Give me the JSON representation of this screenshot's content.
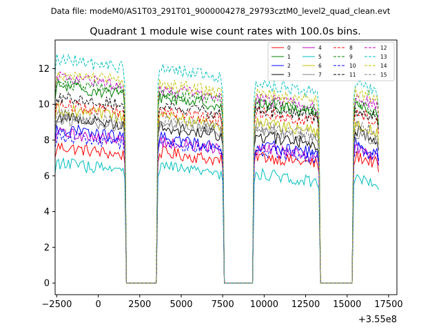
{
  "suptitle": "Data file: modeM0/AS1T03_291T01_9000004278_29793cztM0_level2_quad_clean.evt",
  "chart_data": {
    "type": "line",
    "title": "Quadrant 1 module wise count rates with 100.0s bins.",
    "xlabel": "",
    "ylabel": "",
    "offset_label": "+3.55e8",
    "xlim": [
      -2600,
      18000
    ],
    "ylim": [
      -0.65,
      13.6
    ],
    "x_ticks": [
      -2500,
      0,
      2500,
      5000,
      7500,
      10000,
      12500,
      15000,
      17500
    ],
    "x_tick_labels": [
      "−2500",
      "0",
      "2500",
      "5000",
      "7500",
      "10000",
      "12500",
      "15000",
      "17500"
    ],
    "y_ticks": [
      0,
      2,
      4,
      6,
      8,
      10,
      12
    ],
    "y_tick_labels": [
      "0",
      "2",
      "4",
      "6",
      "8",
      "10",
      "12"
    ],
    "grid": false,
    "legend_position": "top-right",
    "legend_columns": 4,
    "segments": [
      {
        "start": -2600,
        "end": 1600
      },
      {
        "start": 3600,
        "end": 7500
      },
      {
        "start": 9400,
        "end": 13300
      },
      {
        "start": 15400,
        "end": 16900
      }
    ],
    "gap_value": 0,
    "series": [
      {
        "name": "0",
        "color": "#ff0000",
        "dashed": false,
        "levels": [
          7.4,
          7.1,
          6.9,
          6.9
        ]
      },
      {
        "name": "1",
        "color": "#008000",
        "dashed": false,
        "levels": [
          10.8,
          10.2,
          9.8,
          9.8
        ]
      },
      {
        "name": "2",
        "color": "#0000ff",
        "dashed": false,
        "levels": [
          8.4,
          7.9,
          7.5,
          7.6
        ]
      },
      {
        "name": "3",
        "color": "#000000",
        "dashed": false,
        "levels": [
          9.1,
          8.5,
          8.0,
          8.3
        ]
      },
      {
        "name": "4",
        "color": "#bf00bf",
        "dashed": false,
        "levels": [
          8.2,
          7.7,
          7.3,
          7.3
        ]
      },
      {
        "name": "5",
        "color": "#00bfbf",
        "dashed": false,
        "levels": [
          6.5,
          6.3,
          5.9,
          5.8
        ]
      },
      {
        "name": "6",
        "color": "#bfbf00",
        "dashed": false,
        "levels": [
          9.5,
          9.1,
          8.7,
          8.7
        ]
      },
      {
        "name": "7",
        "color": "#808080",
        "dashed": false,
        "levels": [
          9.0,
          8.7,
          8.3,
          8.2
        ]
      },
      {
        "name": "8",
        "color": "#ff0000",
        "dashed": true,
        "levels": [
          9.8,
          9.4,
          9.3,
          9.3
        ]
      },
      {
        "name": "9",
        "color": "#008000",
        "dashed": true,
        "levels": [
          11.0,
          10.4,
          9.9,
          9.9
        ]
      },
      {
        "name": "10",
        "color": "#0000ff",
        "dashed": true,
        "levels": [
          8.0,
          7.6,
          7.2,
          7.3
        ]
      },
      {
        "name": "11",
        "color": "#000000",
        "dashed": true,
        "levels": [
          10.2,
          9.7,
          9.5,
          9.5
        ]
      },
      {
        "name": "12",
        "color": "#bf00bf",
        "dashed": true,
        "levels": [
          11.3,
          10.6,
          10.1,
          10.2
        ]
      },
      {
        "name": "13",
        "color": "#00bfbf",
        "dashed": true,
        "levels": [
          12.3,
          11.8,
          10.9,
          10.9
        ]
      },
      {
        "name": "14",
        "color": "#bfbf00",
        "dashed": true,
        "levels": [
          11.5,
          10.9,
          10.4,
          10.5
        ]
      },
      {
        "name": "15",
        "color": "#808080",
        "dashed": true,
        "levels": [
          9.2,
          8.9,
          8.5,
          8.6
        ]
      }
    ]
  }
}
